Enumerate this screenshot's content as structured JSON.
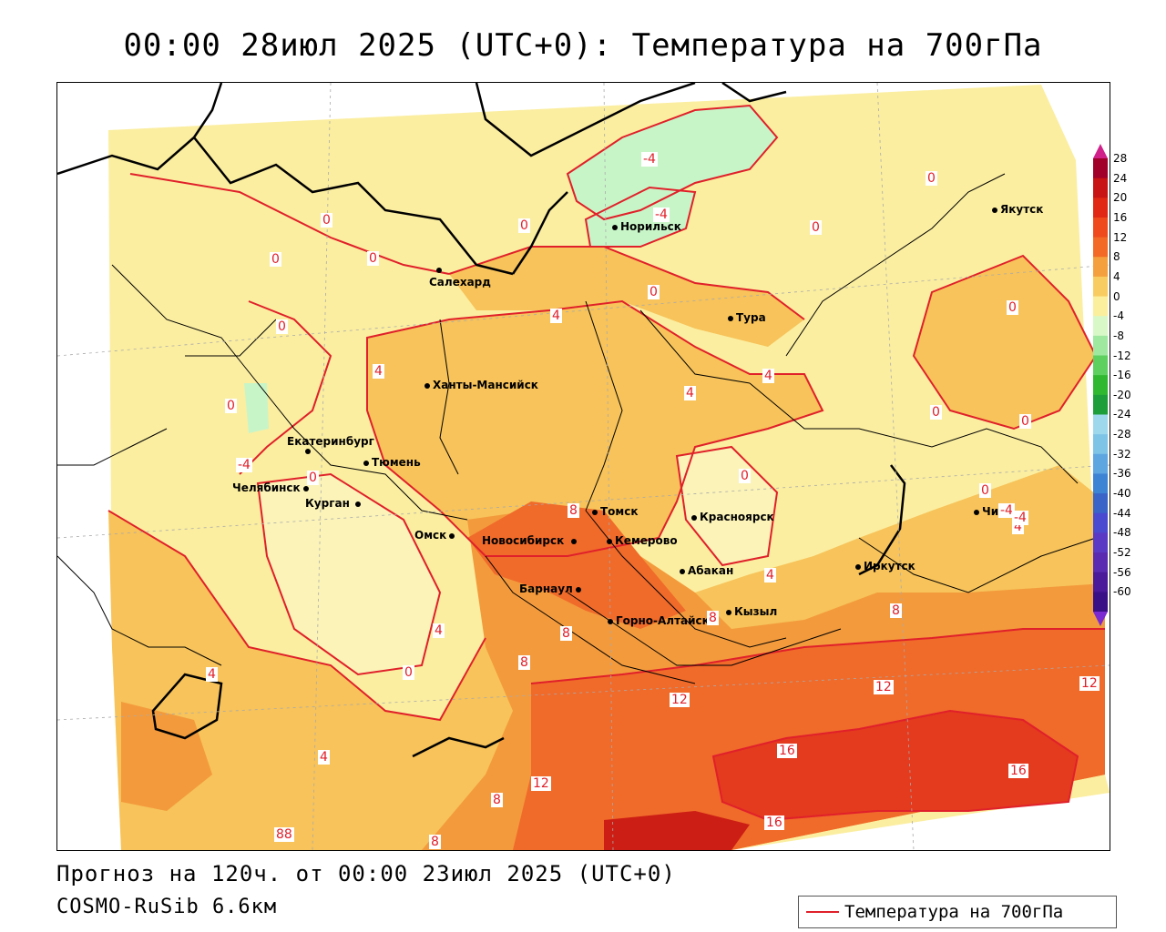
{
  "title": "00:00 28июл 2025 (UTC+0): Температура на 700гПа",
  "footer": {
    "forecast": "Прогноз на 120ч. от 00:00 23июл 2025 (UTC+0)",
    "model": "COSMO-RuSib 6.6км"
  },
  "legend": {
    "label": "Температура на 700гПа",
    "line_color": "#e0202a"
  },
  "colors": {
    "t_-4_0": "#c8f5c8",
    "t_0_4": "#fbeea0",
    "t_4_8": "#f7c35a",
    "t_8_12": "#f39a3c",
    "t_12_16": "#f06a2a",
    "t_16_20": "#e43a1e",
    "t_20_24": "#cc1e14",
    "contour": "#e0202a"
  },
  "color_scale": {
    "ticks": [
      "28",
      "24",
      "20",
      "16",
      "12",
      "8",
      "4",
      "0",
      "-4",
      "-8",
      "-12",
      "-16",
      "-20",
      "-24",
      "-28",
      "-32",
      "-36",
      "-40",
      "-44",
      "-48",
      "-52",
      "-56",
      "-60"
    ],
    "colors": [
      "#a0002a",
      "#c81414",
      "#e02814",
      "#ee4a1c",
      "#f36a26",
      "#f5a03e",
      "#f8cc60",
      "#fbee9c",
      "#d8f8c8",
      "#9ee8a0",
      "#5ed060",
      "#30b830",
      "#1e9e3a",
      "#9ed8ec",
      "#7ec4e6",
      "#5ea6e0",
      "#3e84d4",
      "#3a64c8",
      "#4a4ad0",
      "#5a3ac4",
      "#5a2ab0",
      "#4a1a9a",
      "#3a1086"
    ],
    "top_arrow": "#d0208a",
    "bottom_arrow": "#7a2ad0"
  },
  "cities": [
    {
      "name": "Якутск"
    },
    {
      "name": "Норильск"
    },
    {
      "name": "Салехард"
    },
    {
      "name": "Тура"
    },
    {
      "name": "Ханты-Мансийск"
    },
    {
      "name": "Екатеринбург"
    },
    {
      "name": "Тюмень"
    },
    {
      "name": "Челябинск"
    },
    {
      "name": "Курган"
    },
    {
      "name": "Омск"
    },
    {
      "name": "Новосибирск"
    },
    {
      "name": "Томск"
    },
    {
      "name": "Кемерово"
    },
    {
      "name": "Красноярск"
    },
    {
      "name": "Абакан"
    },
    {
      "name": "Барнаул"
    },
    {
      "name": "Горно-Алтайск"
    },
    {
      "name": "Кызыл"
    },
    {
      "name": "Иркутск"
    },
    {
      "name": "Чита"
    }
  ],
  "contour_labels": [
    "-4",
    "-4",
    "0",
    "0",
    "0",
    "0",
    "0",
    "0",
    "0",
    "0",
    "0",
    "0",
    "0",
    "0",
    "0",
    "4",
    "4",
    "4",
    "4",
    "4",
    "4",
    "4",
    "4",
    "4",
    "8",
    "8",
    "8",
    "8",
    "8",
    "8",
    "88",
    "12",
    "12",
    "12",
    "12",
    "16",
    "16",
    "16",
    "-4",
    "-4",
    "-4",
    "8",
    "0",
    "0",
    "0"
  ]
}
